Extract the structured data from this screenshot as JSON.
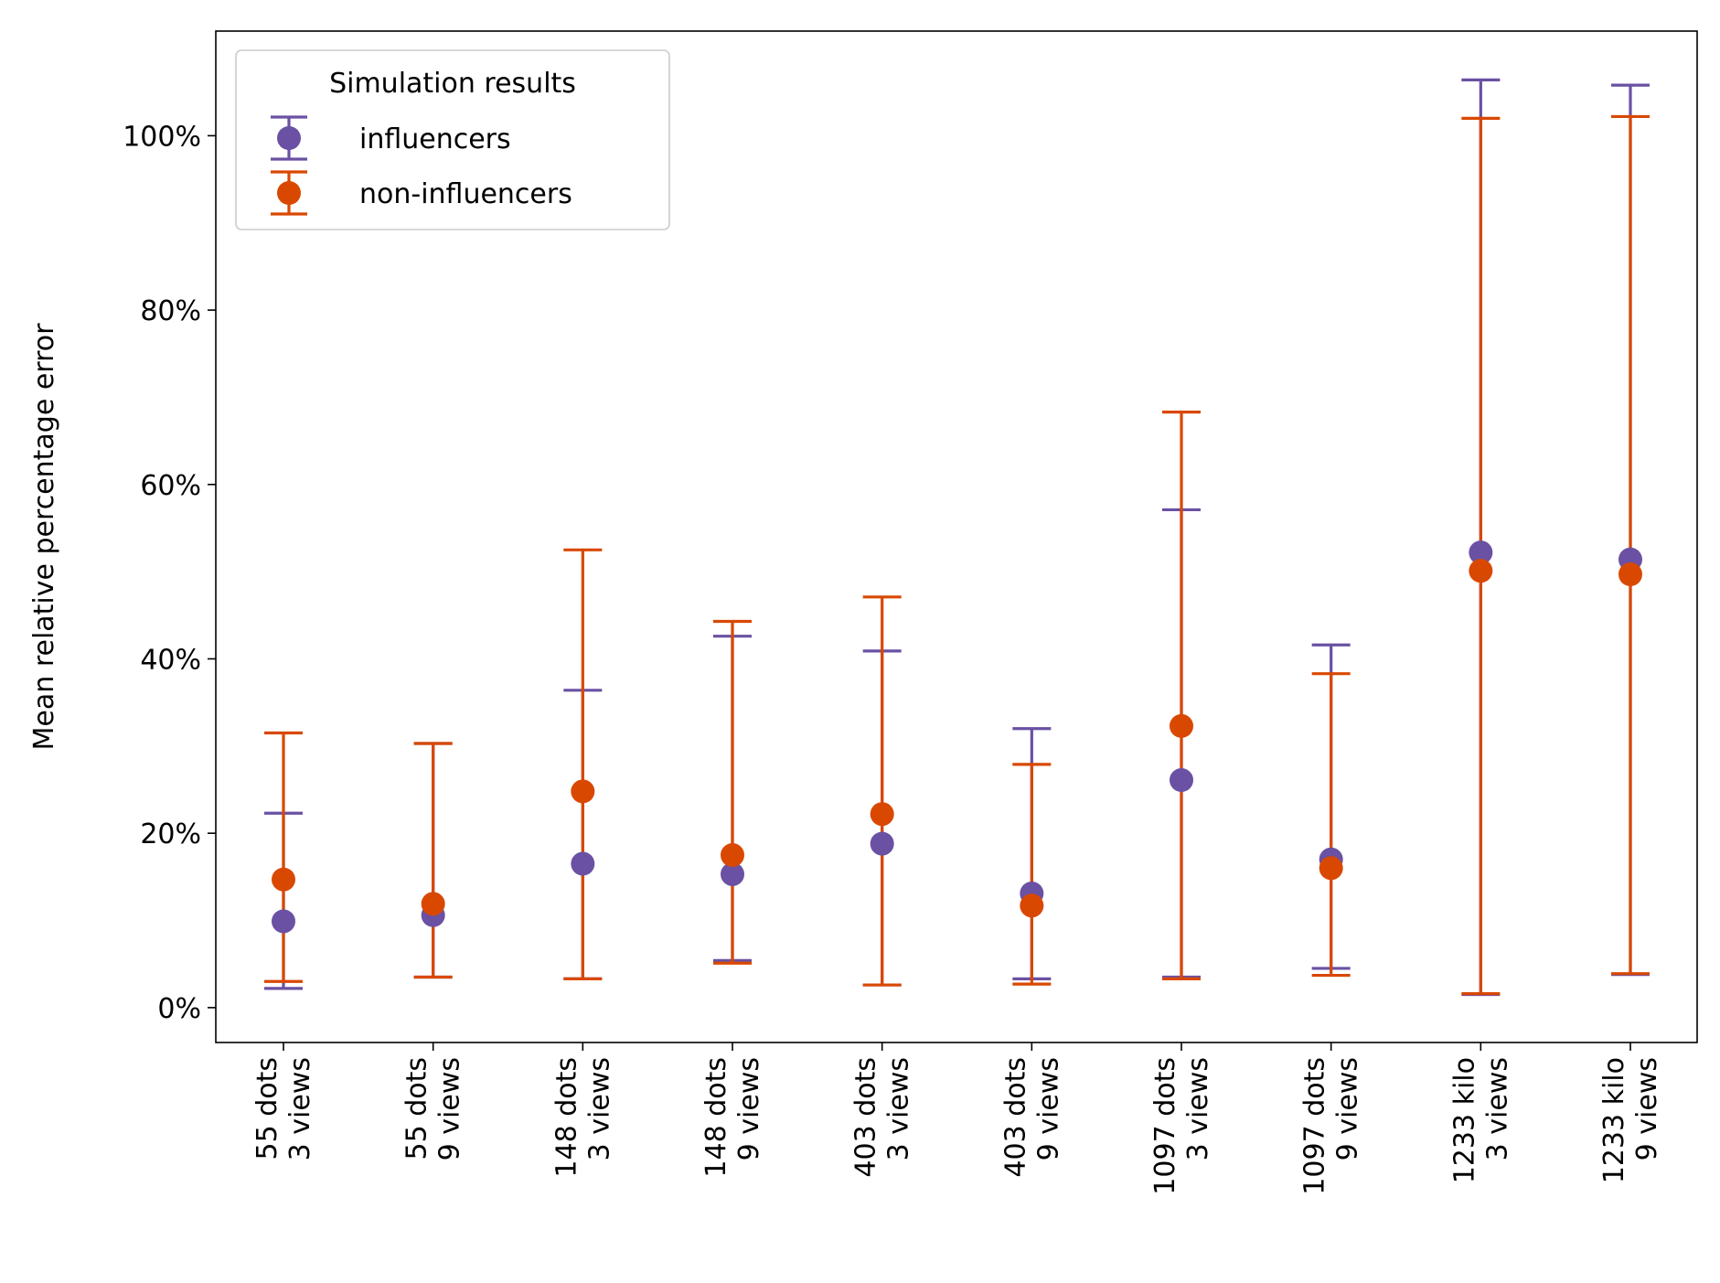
{
  "chart_data": {
    "type": "errorbar",
    "ylabel": "Mean relative percentage error",
    "ylim": [
      -4,
      112
    ],
    "yticks": [
      0,
      20,
      40,
      60,
      80,
      100
    ],
    "ytick_labels": [
      "0%",
      "20%",
      "40%",
      "60%",
      "80%",
      "100%"
    ],
    "grid": false,
    "legend": {
      "title": "Simulation results",
      "placement": "top-left"
    },
    "categories": [
      [
        "55 dots",
        "3 views"
      ],
      [
        "55 dots",
        "9 views"
      ],
      [
        "148 dots",
        "3 views"
      ],
      [
        "148 dots",
        "9 views"
      ],
      [
        "403 dots",
        "3 views"
      ],
      [
        "403 dots",
        "9 views"
      ],
      [
        "1097 dots",
        "3 views"
      ],
      [
        "1097 dots",
        "9 views"
      ],
      [
        "1233 kilo",
        "3 views"
      ],
      [
        "1233 kilo",
        "9 views"
      ]
    ],
    "series": [
      {
        "name": "influencers",
        "color": "#6a51a3",
        "values": [
          9.9,
          10.6,
          16.5,
          15.3,
          18.8,
          13.1,
          26.1,
          17.0,
          52.2,
          51.4
        ],
        "err_low": [
          2.2,
          3.5,
          3.3,
          5.4,
          2.6,
          3.3,
          3.5,
          4.5,
          1.5,
          3.8
        ],
        "err_high": [
          22.3,
          30.3,
          36.4,
          42.6,
          40.9,
          32.0,
          57.1,
          41.6,
          106.4,
          105.8
        ]
      },
      {
        "name": "non-influencers",
        "color": "#d94801",
        "values": [
          14.7,
          11.9,
          24.8,
          17.5,
          22.2,
          11.7,
          32.3,
          16.0,
          50.1,
          49.7
        ],
        "err_low": [
          3.0,
          3.5,
          3.3,
          5.1,
          2.6,
          2.7,
          3.3,
          3.7,
          1.6,
          3.9
        ],
        "err_high": [
          31.5,
          30.3,
          52.5,
          44.3,
          47.1,
          27.9,
          68.3,
          38.3,
          102.0,
          102.2
        ]
      }
    ]
  }
}
